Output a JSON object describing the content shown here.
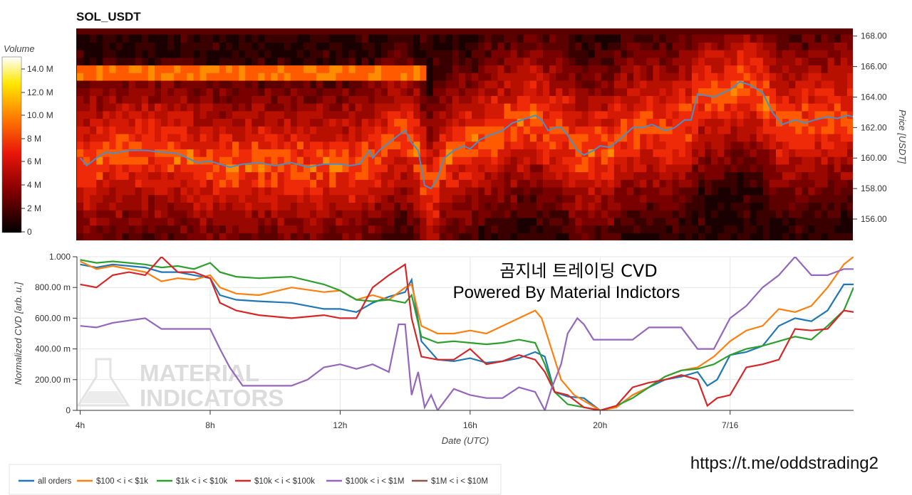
{
  "chart_data": [
    {
      "type": "heatmap",
      "title": "SOL_USDT",
      "ylabel": "Price [USDT]",
      "y_ticks": [
        "168.00",
        "166.00",
        "164.00",
        "162.00",
        "160.00",
        "158.00",
        "156.00"
      ],
      "ylim": [
        154.6,
        168.5
      ],
      "colorbar": {
        "title": "Volume",
        "ticks": [
          "14.0 M",
          "12.0 M",
          "10.0 M",
          "8 M",
          "6 M",
          "4 M",
          "2 M",
          "0"
        ],
        "range": [
          0,
          15000000
        ]
      },
      "price_series": {
        "color": "#4a8fc8",
        "t": [
          4.0,
          4.2,
          4.5,
          4.8,
          5.0,
          5.5,
          6.0,
          6.5,
          7.0,
          7.3,
          7.6,
          8.0,
          8.3,
          8.6,
          9.0,
          9.5,
          10.0,
          10.5,
          11.0,
          11.5,
          12.0,
          12.3,
          12.6,
          12.9,
          13.0,
          13.2,
          13.5,
          13.8,
          14.0,
          14.2,
          14.4,
          14.6,
          14.8,
          15.0,
          15.2,
          15.5,
          15.8,
          16.0,
          16.3,
          16.6,
          17.0,
          17.3,
          17.6,
          18.0,
          18.2,
          18.4,
          18.6,
          18.8,
          19.0,
          19.3,
          19.5,
          19.8,
          20.0,
          20.3,
          20.6,
          21.0,
          21.3,
          21.6,
          22.0,
          22.3,
          22.6,
          22.8,
          23.0,
          23.5,
          24.0,
          24.3,
          24.6,
          25.0,
          25.3,
          25.6,
          26.0,
          26.3,
          26.6,
          27.0,
          27.3,
          27.6,
          27.8
        ],
        "price": [
          160.0,
          159.5,
          160.0,
          160.4,
          160.3,
          160.5,
          160.5,
          160.4,
          160.3,
          160.0,
          159.7,
          159.8,
          159.6,
          159.4,
          159.6,
          159.7,
          159.5,
          159.7,
          159.4,
          159.6,
          159.6,
          159.5,
          159.6,
          160.5,
          160.0,
          160.5,
          161.0,
          161.5,
          161.8,
          161.0,
          160.5,
          158.2,
          158.0,
          158.7,
          160.0,
          160.5,
          160.8,
          160.6,
          161.2,
          161.5,
          161.8,
          162.3,
          162.5,
          162.8,
          162.5,
          161.8,
          162.0,
          162.0,
          161.5,
          160.5,
          160.2,
          160.5,
          160.8,
          160.7,
          161.2,
          162.0,
          162.0,
          162.2,
          161.8,
          162.0,
          162.5,
          162.5,
          164.2,
          164.0,
          164.5,
          165.0,
          164.8,
          164.3,
          163.0,
          162.2,
          162.5,
          162.3,
          162.5,
          162.7,
          162.6,
          162.8,
          162.7
        ]
      }
    },
    {
      "type": "line",
      "xlabel": "Date (UTC)",
      "ylabel": "Normalized CVD [arb. u.]",
      "ylim": [
        0,
        1.0
      ],
      "x_ticks": [
        "4h",
        "8h",
        "12h",
        "16h",
        "20h",
        "7/16"
      ],
      "y_ticks": [
        "1.000",
        "800.00 m",
        "600.00 m",
        "400.00 m",
        "200.00 m",
        "0"
      ],
      "series": [
        {
          "name": "all orders",
          "color": "#1f77b4",
          "t": [
            4.0,
            4.5,
            5.0,
            6.0,
            6.5,
            7.0,
            7.5,
            8.0,
            8.3,
            8.8,
            9.5,
            10.5,
            11.5,
            12.0,
            12.5,
            13.0,
            13.5,
            14.0,
            14.2,
            14.5,
            15.0,
            15.5,
            16.0,
            16.5,
            17.0,
            17.5,
            18.0,
            18.3,
            18.6,
            19.0,
            19.5,
            20.0,
            20.5,
            21.0,
            21.5,
            22.0,
            22.5,
            23.0,
            23.3,
            23.6,
            24.0,
            24.5,
            25.0,
            25.5,
            26.0,
            26.5,
            27.0,
            27.5,
            27.8
          ],
          "v": [
            0.95,
            0.93,
            0.95,
            0.93,
            0.9,
            0.9,
            0.88,
            0.86,
            0.75,
            0.72,
            0.71,
            0.7,
            0.66,
            0.66,
            0.64,
            0.7,
            0.74,
            0.77,
            0.85,
            0.45,
            0.33,
            0.32,
            0.34,
            0.31,
            0.32,
            0.34,
            0.38,
            0.35,
            0.12,
            0.09,
            0.08,
            0.0,
            0.02,
            0.1,
            0.15,
            0.2,
            0.22,
            0.25,
            0.16,
            0.2,
            0.36,
            0.38,
            0.42,
            0.55,
            0.6,
            0.58,
            0.65,
            0.82,
            0.82
          ]
        },
        {
          "name": "$100 < i < $1k",
          "color": "#ff7f0e",
          "t": [
            4.0,
            4.5,
            5.0,
            6.0,
            6.5,
            7.0,
            7.5,
            8.0,
            8.3,
            8.8,
            9.5,
            10.5,
            11.5,
            12.0,
            12.5,
            13.0,
            13.5,
            14.0,
            14.2,
            14.5,
            15.0,
            15.5,
            16.0,
            16.5,
            17.0,
            17.5,
            18.0,
            18.2,
            18.5,
            18.8,
            19.2,
            19.6,
            20.0,
            20.5,
            21.0,
            21.5,
            22.0,
            22.5,
            23.0,
            23.5,
            24.0,
            24.5,
            25.0,
            25.5,
            26.0,
            26.5,
            27.0,
            27.5,
            27.8
          ],
          "v": [
            0.97,
            0.92,
            0.94,
            0.9,
            0.84,
            0.86,
            0.85,
            0.88,
            0.8,
            0.76,
            0.75,
            0.8,
            0.77,
            0.78,
            0.72,
            0.75,
            0.72,
            0.8,
            0.82,
            0.55,
            0.5,
            0.5,
            0.52,
            0.5,
            0.55,
            0.6,
            0.65,
            0.6,
            0.4,
            0.2,
            0.1,
            0.05,
            0.0,
            0.02,
            0.1,
            0.15,
            0.22,
            0.26,
            0.28,
            0.35,
            0.45,
            0.52,
            0.55,
            0.66,
            0.64,
            0.68,
            0.8,
            0.95,
            1.0
          ]
        },
        {
          "name": "$1k < i < $10k",
          "color": "#2ca02c",
          "t": [
            4.0,
            4.5,
            5.0,
            6.0,
            6.5,
            7.0,
            7.5,
            8.0,
            8.3,
            8.8,
            9.5,
            10.5,
            11.5,
            12.0,
            12.5,
            13.0,
            13.5,
            14.0,
            14.2,
            14.5,
            15.0,
            15.5,
            16.0,
            16.5,
            17.0,
            17.5,
            18.0,
            18.3,
            18.6,
            19.0,
            19.5,
            20.0,
            20.5,
            21.0,
            21.5,
            22.0,
            22.5,
            23.0,
            23.5,
            24.0,
            24.5,
            25.0,
            25.5,
            26.0,
            26.5,
            27.0,
            27.5,
            27.8
          ],
          "v": [
            0.98,
            0.96,
            0.97,
            0.95,
            0.93,
            0.94,
            0.92,
            0.96,
            0.9,
            0.87,
            0.86,
            0.87,
            0.82,
            0.78,
            0.72,
            0.71,
            0.72,
            0.7,
            0.75,
            0.48,
            0.44,
            0.45,
            0.44,
            0.43,
            0.44,
            0.46,
            0.44,
            0.3,
            0.12,
            0.04,
            0.02,
            0.0,
            0.03,
            0.08,
            0.15,
            0.22,
            0.26,
            0.27,
            0.3,
            0.36,
            0.4,
            0.42,
            0.45,
            0.48,
            0.46,
            0.55,
            0.65,
            0.8,
            0.81
          ]
        },
        {
          "name": "$10k < i < $100k",
          "color": "#d62728",
          "t": [
            4.0,
            4.5,
            5.0,
            5.5,
            6.0,
            6.5,
            7.0,
            7.5,
            8.0,
            8.3,
            8.8,
            9.5,
            10.5,
            11.5,
            12.0,
            12.5,
            13.0,
            13.5,
            14.0,
            14.2,
            14.5,
            15.0,
            15.5,
            16.0,
            16.5,
            17.0,
            17.5,
            18.0,
            18.3,
            18.6,
            19.0,
            19.5,
            20.0,
            20.5,
            21.0,
            21.5,
            22.0,
            22.5,
            23.0,
            23.3,
            23.6,
            24.0,
            24.5,
            25.0,
            25.5,
            26.0,
            26.5,
            27.0,
            27.5,
            27.8
          ],
          "v": [
            0.82,
            0.8,
            0.88,
            0.9,
            0.88,
            1.0,
            0.9,
            0.9,
            0.86,
            0.7,
            0.65,
            0.62,
            0.6,
            0.62,
            0.6,
            0.6,
            0.8,
            0.88,
            0.95,
            0.6,
            0.35,
            0.33,
            0.33,
            0.4,
            0.3,
            0.32,
            0.36,
            0.33,
            0.25,
            0.12,
            0.1,
            0.02,
            0.0,
            0.03,
            0.15,
            0.18,
            0.2,
            0.23,
            0.2,
            0.03,
            0.08,
            0.1,
            0.28,
            0.3,
            0.33,
            0.53,
            0.52,
            0.53,
            0.65,
            0.64
          ]
        },
        {
          "name": "$100k < i < $1M",
          "color": "#9467bd",
          "t": [
            4.0,
            4.5,
            5.0,
            6.0,
            6.5,
            7.0,
            7.5,
            8.0,
            8.3,
            8.6,
            9.0,
            9.5,
            10.0,
            10.5,
            11.0,
            11.5,
            12.0,
            12.5,
            13.0,
            13.5,
            13.8,
            14.0,
            14.2,
            14.4,
            14.6,
            14.8,
            15.0,
            15.5,
            16.0,
            16.5,
            17.0,
            17.5,
            18.0,
            18.3,
            18.5,
            18.8,
            19.0,
            19.3,
            19.5,
            19.8,
            20.0,
            20.5,
            21.0,
            21.5,
            22.0,
            22.5,
            23.0,
            23.5,
            24.0,
            24.5,
            25.0,
            25.5,
            26.0,
            26.5,
            27.0,
            27.5,
            27.8
          ],
          "v": [
            0.55,
            0.54,
            0.57,
            0.6,
            0.53,
            0.53,
            0.53,
            0.53,
            0.4,
            0.28,
            0.16,
            0.16,
            0.16,
            0.16,
            0.2,
            0.28,
            0.3,
            0.27,
            0.3,
            0.25,
            0.56,
            0.56,
            0.1,
            0.25,
            0.02,
            0.1,
            0.0,
            0.14,
            0.1,
            0.08,
            0.08,
            0.15,
            0.12,
            0.0,
            0.14,
            0.3,
            0.5,
            0.6,
            0.56,
            0.46,
            0.46,
            0.46,
            0.46,
            0.54,
            0.54,
            0.54,
            0.4,
            0.4,
            0.6,
            0.68,
            0.8,
            0.88,
            1.0,
            0.88,
            0.88,
            0.92,
            0.92
          ]
        },
        {
          "name": "$1M < i < $10M",
          "color": "#8c564b",
          "t": [],
          "v": []
        }
      ]
    }
  ],
  "overlay": {
    "title": "곰지네 트레이딩 CVD",
    "subtitle": "Powered By Material Indictors",
    "link": "https://t.me/oddstrading2",
    "watermark_line1": "MATERIAL",
    "watermark_line2": "INDICATORS"
  }
}
